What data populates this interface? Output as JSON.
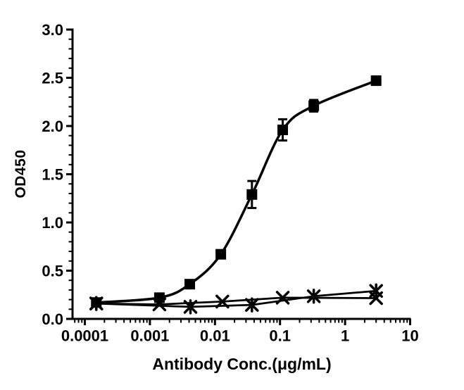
{
  "page": {
    "background": "#ffffff"
  },
  "chart_data": {
    "type": "line",
    "title": "",
    "grid": false,
    "legend": "none",
    "colors": {
      "ink": "#000000",
      "background": "#ffffff"
    },
    "x_axis": {
      "label": "Antibody Conc.(μg/mL)",
      "scale": "log",
      "min": 6.5e-05,
      "max": 10,
      "ticks": [
        {
          "v": 0.0001,
          "label": "0.0001"
        },
        {
          "v": 0.001,
          "label": "0.001"
        },
        {
          "v": 0.01,
          "label": "0.01"
        },
        {
          "v": 0.1,
          "label": "0.1"
        },
        {
          "v": 1,
          "label": "1"
        },
        {
          "v": 10,
          "label": "10"
        }
      ]
    },
    "y_axis": {
      "label": "OD450",
      "scale": "linear",
      "min": 0,
      "max": 3,
      "major_step": 0.5,
      "minor_step": 0.1,
      "ticks": [
        {
          "v": 0,
          "label": "0.0"
        },
        {
          "v": 0.5,
          "label": "0.5"
        },
        {
          "v": 1,
          "label": "1.0"
        },
        {
          "v": 1.5,
          "label": "1.5"
        },
        {
          "v": 2,
          "label": "2.0"
        },
        {
          "v": 2.5,
          "label": "2.5"
        },
        {
          "v": 3,
          "label": "3.0"
        }
      ]
    },
    "series": [
      {
        "name": "antibody-binding-sigmoid",
        "marker": "filled-square",
        "line": "smooth-sigmoid",
        "points": [
          {
            "x": 0.00015,
            "y": 0.17,
            "err": 0.02
          },
          {
            "x": 0.0014,
            "y": 0.22,
            "err": 0.03
          },
          {
            "x": 0.0041,
            "y": 0.36,
            "err": 0.02
          },
          {
            "x": 0.0123,
            "y": 0.67,
            "err": 0.02
          },
          {
            "x": 0.037,
            "y": 1.29,
            "err": 0.14
          },
          {
            "x": 0.11,
            "y": 1.96,
            "err": 0.11
          },
          {
            "x": 0.33,
            "y": 2.21,
            "err": 0.06
          },
          {
            "x": 3,
            "y": 2.47,
            "err": 0.02
          }
        ]
      },
      {
        "name": "control-flat-1",
        "marker": "x-cross",
        "line": "straight",
        "points": [
          {
            "x": 0.00015,
            "y": 0.16
          },
          {
            "x": 0.0014,
            "y": 0.15
          },
          {
            "x": 0.013,
            "y": 0.18
          },
          {
            "x": 0.11,
            "y": 0.22
          },
          {
            "x": 3,
            "y": 0.215
          }
        ]
      },
      {
        "name": "control-flat-2",
        "marker": "star-cross",
        "line": "straight",
        "points": [
          {
            "x": 0.00015,
            "y": 0.16
          },
          {
            "x": 0.0042,
            "y": 0.125
          },
          {
            "x": 0.037,
            "y": 0.145
          },
          {
            "x": 0.33,
            "y": 0.235
          },
          {
            "x": 3,
            "y": 0.29
          }
        ]
      }
    ]
  }
}
